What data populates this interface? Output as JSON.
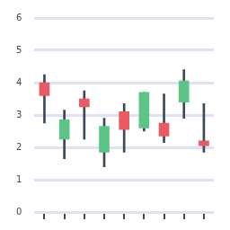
{
  "chart_data": {
    "type": "candlestick",
    "categories": [
      null,
      null,
      null,
      null,
      null,
      null,
      null,
      null,
      null
    ],
    "open": [
      4.0,
      2.25,
      3.5,
      1.85,
      3.1,
      2.6,
      2.75,
      3.4,
      2.2
    ],
    "high": [
      4.25,
      3.15,
      3.75,
      2.9,
      3.35,
      3.7,
      3.65,
      4.4,
      3.35
    ],
    "low": [
      2.75,
      1.65,
      2.25,
      1.4,
      1.85,
      2.5,
      2.15,
      2.9,
      1.85
    ],
    "close": [
      3.6,
      2.85,
      3.25,
      2.65,
      2.55,
      3.7,
      2.35,
      4.05,
      2.05
    ],
    "colors": [
      "#ea5a63",
      "#5cc486",
      "#ea5a63",
      "#5cc486",
      "#ea5a63",
      "#5cc486",
      "#ea5a63",
      "#5cc486",
      "#ea5a63"
    ],
    "ylim": [
      0,
      6
    ],
    "yticks": [
      0,
      1,
      2,
      3,
      4,
      5,
      6
    ],
    "grid": true,
    "tick_labels": "y"
  }
}
